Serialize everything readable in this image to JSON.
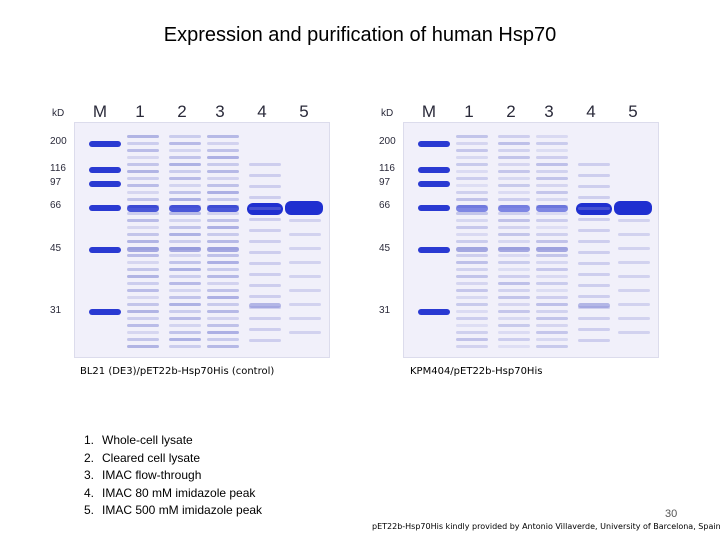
{
  "title": "Expression and purification of human Hsp70",
  "gels": [
    {
      "kd_label": "kD",
      "lanes": [
        "M",
        "1",
        "2",
        "3",
        "4",
        "5"
      ],
      "markers": [
        "200",
        "116",
        "97",
        "66",
        "45",
        "31"
      ],
      "caption": "BL21 (DE3)/pET22b-Hsp70His (control)"
    },
    {
      "kd_label": "kD",
      "lanes": [
        "M",
        "1",
        "2",
        "3",
        "4",
        "5"
      ],
      "markers": [
        "200",
        "116",
        "97",
        "66",
        "45",
        "31"
      ],
      "caption": "KPM404/pET22b-Hsp70His"
    }
  ],
  "legend": [
    {
      "num": "1.",
      "text": "Whole-cell lysate"
    },
    {
      "num": "2.",
      "text": "Cleared cell lysate"
    },
    {
      "num": "3.",
      "text": "IMAC flow-through"
    },
    {
      "num": "4.",
      "text": "IMAC 80 mM imidazole peak"
    },
    {
      "num": "5.",
      "text": "IMAC 500 mM imidazole peak"
    }
  ],
  "page_number": "30",
  "credit": "pET22b-Hsp70His kindly provided by Antonio Villaverde, University of Barcelona, Spain.",
  "colors": {
    "band_dark": "#1f2fd0",
    "band_light": "#8b90d8",
    "gel_bg": "#f1f0fa"
  }
}
